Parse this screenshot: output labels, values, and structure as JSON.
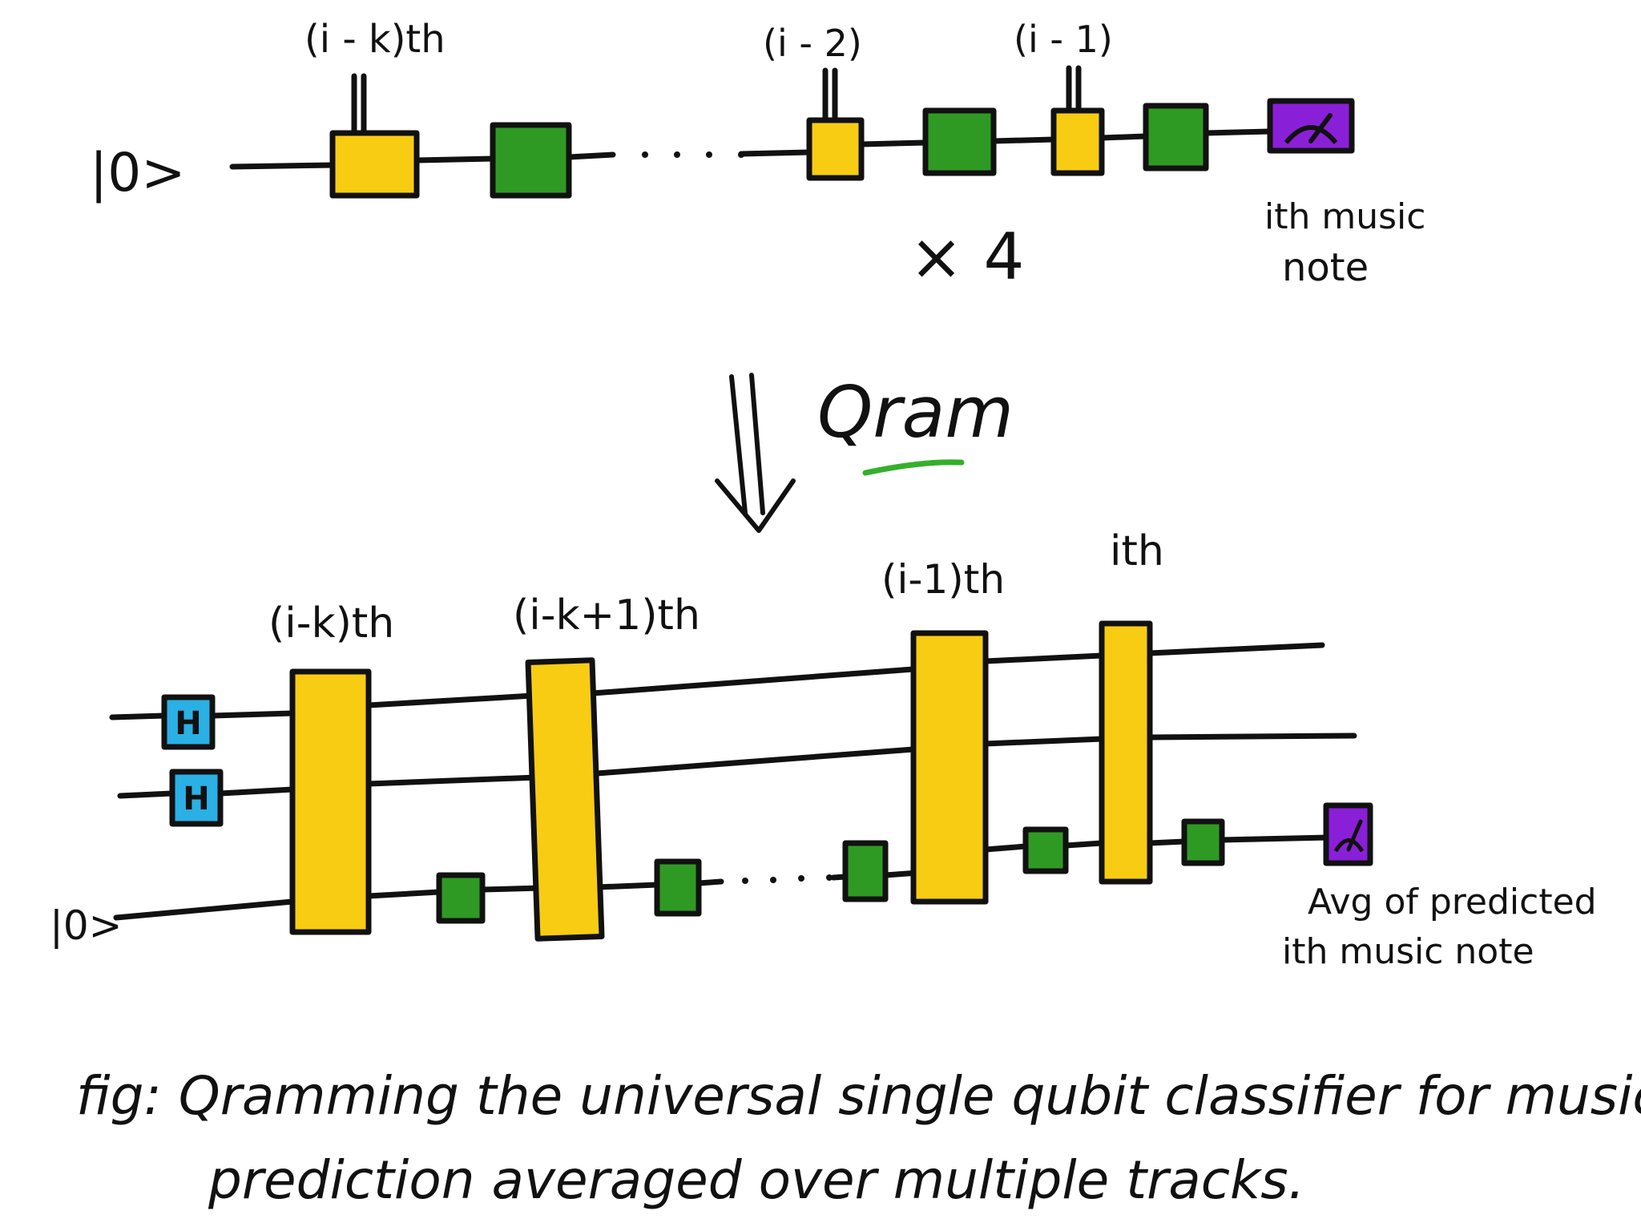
{
  "colors": {
    "ink": "#111111",
    "encoding_gate": "#f8cc12",
    "trainable_gate": "#2f9a23",
    "hadamard_gate": "#2ab0e4",
    "measurement_gate": "#8a1fd8",
    "underline": "#34b02a"
  },
  "top_circuit": {
    "input_state": "|0>",
    "label_ik": "(i - k)th",
    "label_i2": "(i - 2)",
    "label_i1": "(i - 1)",
    "repeat_label": "× 4",
    "output_label_line1": "ith music",
    "output_label_line2": "note",
    "measure_icon": "meter-icon"
  },
  "transform": {
    "label": "Qram",
    "arrow_icon": "double-down-arrow-icon"
  },
  "bottom_circuit": {
    "input_state": "|0>",
    "hadamard_label": "H",
    "label_ik": "(i-k)th",
    "label_ik1": "(i-k+1)th",
    "label_i1": "(i-1)th",
    "label_i": "ith",
    "output_label_line1": "Avg of predicted",
    "output_label_line2": "ith music note",
    "measure_icon": "meter-icon"
  },
  "caption": {
    "line1": "fig: Qramming the universal single qubit classifier for music",
    "line2": "prediction averaged over multiple tracks."
  }
}
